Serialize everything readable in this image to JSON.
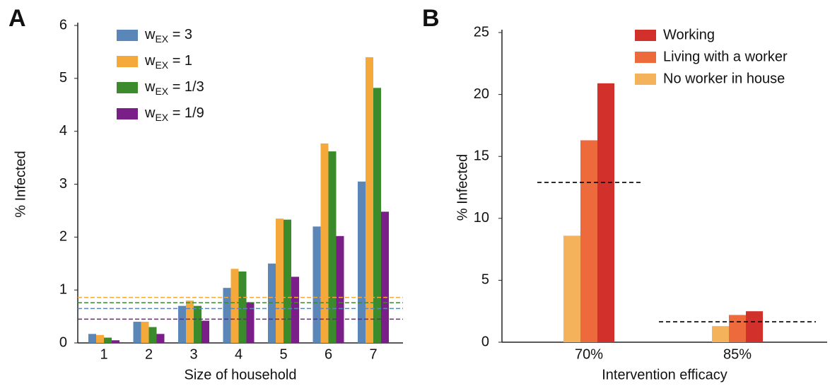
{
  "chart_data": [
    {
      "type": "bar",
      "panel": "A",
      "x_label": "Size of household",
      "y_label": "% Infected",
      "categories": [
        "1",
        "2",
        "3",
        "4",
        "5",
        "6",
        "7"
      ],
      "ylim": [
        0,
        6
      ],
      "yticks": [
        0,
        1,
        2,
        3,
        4,
        5,
        6
      ],
      "grid": false,
      "series": [
        {
          "name": {
            "base": "w",
            "sub": "EX",
            "rest": " = 3"
          },
          "color": "#5b86b8",
          "values": [
            0.17,
            0.4,
            0.7,
            1.04,
            1.5,
            2.2,
            3.05
          ],
          "reference": 0.65
        },
        {
          "name": {
            "base": "w",
            "sub": "EX",
            "rest": " = 1"
          },
          "color": "#f4a93a",
          "values": [
            0.15,
            0.4,
            0.8,
            1.4,
            2.35,
            3.77,
            5.4
          ],
          "reference": 0.86
        },
        {
          "name": {
            "base": "w",
            "sub": "EX",
            "rest": " = 1/3"
          },
          "color": "#3b8a2c",
          "values": [
            0.1,
            0.3,
            0.7,
            1.35,
            2.33,
            3.62,
            4.82
          ],
          "reference": 0.76
        },
        {
          "name": {
            "base": "w",
            "sub": "EX",
            "rest": " = 1/9"
          },
          "color": "#7b1f88",
          "values": [
            0.05,
            0.17,
            0.42,
            0.77,
            1.25,
            2.02,
            2.48
          ],
          "reference": 0.45
        }
      ]
    },
    {
      "type": "bar",
      "panel": "B",
      "x_label": "Intervention efficacy",
      "y_label": "% Infected",
      "categories": [
        "70%",
        "85%"
      ],
      "ylim": [
        0,
        25
      ],
      "yticks": [
        0,
        5,
        10,
        15,
        20,
        25
      ],
      "grid": false,
      "references": [
        12.9,
        1.65
      ],
      "series": [
        {
          "name": "No worker in house",
          "color": "#f4b25a",
          "values": [
            8.6,
            1.3
          ]
        },
        {
          "name": "Living with a worker",
          "color": "#ec6a3c",
          "values": [
            16.3,
            2.2
          ]
        },
        {
          "name": "Working",
          "color": "#d2302b",
          "values": [
            20.9,
            2.5
          ]
        }
      ]
    }
  ]
}
